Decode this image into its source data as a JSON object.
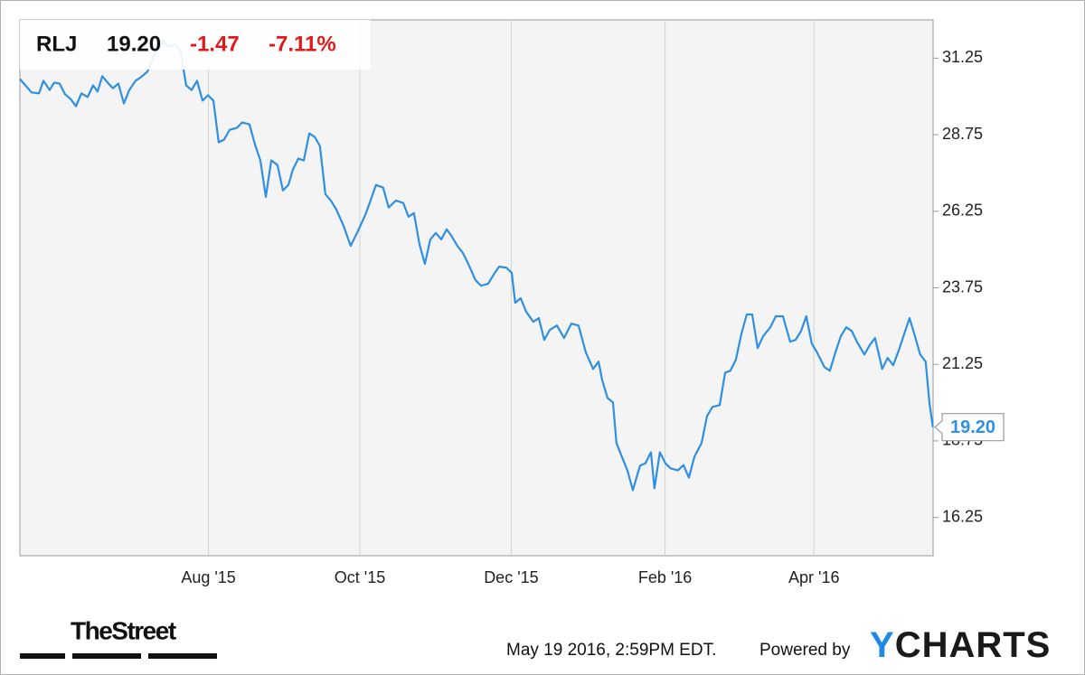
{
  "chart_data": {
    "type": "line",
    "header": {
      "symbol": "RLJ",
      "price": "19.20",
      "change": "-1.47",
      "change_pct": "-7.11%"
    },
    "last_label": "19.20",
    "timestamp": "May 19 2016, 2:59PM EDT.",
    "powered_by": "Powered by",
    "brand": "YCHARTS",
    "source_logo": "TheStreet",
    "color": "#2f8fe0",
    "grid": "x",
    "xlim": [
      0,
      368
    ],
    "ylim": [
      15,
      32.5
    ],
    "xticks": [
      {
        "value": 76,
        "label": "Aug '15"
      },
      {
        "value": 137,
        "label": "Oct '15"
      },
      {
        "value": 198,
        "label": "Dec '15"
      },
      {
        "value": 260,
        "label": "Feb '16"
      },
      {
        "value": 320,
        "label": "Apr '16"
      }
    ],
    "yticks": [
      16.25,
      18.75,
      21.25,
      23.75,
      26.25,
      28.75,
      31.25
    ],
    "x": [
      0,
      2.9,
      4.7,
      7.7,
      9.5,
      12.0,
      13.8,
      16.0,
      18.2,
      20.4,
      22.6,
      24.8,
      27.3,
      29.5,
      31.3,
      33.2,
      35.7,
      37.5,
      39.7,
      41.9,
      44.1,
      46.6,
      48.8,
      51.4,
      53.9,
      56.1,
      57.6,
      59.7,
      63.0,
      64.8,
      67.0,
      69.2,
      71.4,
      73.6,
      75.8,
      78.0,
      80.1,
      82.3,
      84.5,
      87.4,
      89.6,
      92.5,
      94.7,
      96.9,
      99.1,
      101.3,
      103.8,
      106.0,
      108.2,
      110.0,
      112.2,
      114.4,
      116.6,
      118.8,
      120.9,
      123.1,
      125.3,
      127.5,
      130.4,
      133.3,
      136.2,
      139.2,
      141.3,
      143.5,
      146.4,
      148.6,
      151.5,
      154.5,
      156.6,
      158.8,
      161.0,
      163.2,
      165.4,
      167.6,
      169.8,
      172.0,
      174.1,
      176.3,
      178.5,
      180.7,
      183.6,
      185.8,
      188.7,
      190.9,
      193.1,
      196.0,
      198.2,
      199.6,
      201.8,
      204.0,
      206.9,
      209.1,
      211.3,
      213.5,
      216.4,
      219.3,
      222.2,
      225.1,
      228.1,
      231.0,
      233.2,
      234.6,
      236.8,
      239.0,
      240.4,
      242.6,
      244.8,
      247.0,
      249.9,
      252.1,
      254.3,
      255.7,
      257.9,
      260.1,
      262.3,
      265.2,
      267.4,
      269.6,
      271.8,
      274.7,
      276.9,
      279.1,
      282.0,
      284.2,
      286.3,
      288.5,
      290.7,
      292.9,
      295.1,
      297.3,
      299.5,
      302.4,
      304.6,
      307.5,
      310.4,
      312.6,
      314.8,
      316.9,
      319.1,
      321.3,
      324.2,
      326.4,
      328.6,
      330.8,
      333.0,
      335.2,
      337.3,
      340.3,
      342.4,
      344.6,
      347.5,
      349.7,
      351.9,
      354.1,
      356.3,
      358.5,
      360.7,
      362.8,
      365.0,
      366.5,
      367.9
    ],
    "values": [
      30.57,
      30.3,
      30.13,
      30.1,
      30.51,
      30.21,
      30.45,
      30.42,
      30.07,
      29.92,
      29.68,
      30.1,
      29.98,
      30.36,
      30.16,
      30.66,
      30.42,
      30.27,
      30.42,
      29.77,
      30.21,
      30.51,
      30.63,
      30.81,
      31.31,
      31.55,
      31.84,
      31.63,
      31.69,
      31.46,
      30.36,
      30.21,
      30.51,
      29.86,
      30.04,
      29.86,
      28.5,
      28.59,
      28.91,
      28.97,
      29.15,
      29.09,
      28.44,
      27.91,
      26.72,
      27.91,
      27.76,
      26.93,
      27.11,
      27.61,
      27.97,
      27.91,
      28.79,
      28.68,
      28.38,
      26.81,
      26.6,
      26.31,
      25.78,
      25.12,
      25.6,
      26.13,
      26.6,
      27.11,
      27.02,
      26.37,
      26.6,
      26.52,
      26.07,
      26.19,
      25.18,
      24.53,
      25.33,
      25.54,
      25.33,
      25.66,
      25.42,
      25.12,
      24.89,
      24.53,
      24.0,
      23.82,
      23.88,
      24.18,
      24.44,
      24.41,
      24.24,
      23.26,
      23.41,
      22.97,
      22.64,
      22.76,
      22.05,
      22.37,
      22.52,
      22.11,
      22.58,
      22.52,
      21.63,
      21.1,
      21.34,
      20.75,
      20.15,
      20.01,
      18.68,
      18.23,
      17.79,
      17.14,
      17.94,
      18.02,
      18.38,
      17.2,
      18.38,
      18.02,
      17.85,
      17.79,
      17.96,
      17.55,
      18.23,
      18.68,
      19.56,
      19.86,
      19.92,
      20.98,
      21.04,
      21.4,
      22.23,
      22.88,
      22.88,
      21.78,
      22.17,
      22.46,
      22.82,
      22.82,
      21.99,
      22.05,
      22.34,
      22.82,
      21.93,
      21.63,
      21.16,
      21.04,
      21.63,
      22.17,
      22.46,
      22.34,
      21.99,
      21.57,
      21.87,
      22.11,
      21.1,
      21.46,
      21.22,
      21.69,
      22.23,
      22.76,
      22.17,
      21.57,
      21.34,
      20.01,
      19.2
    ]
  }
}
